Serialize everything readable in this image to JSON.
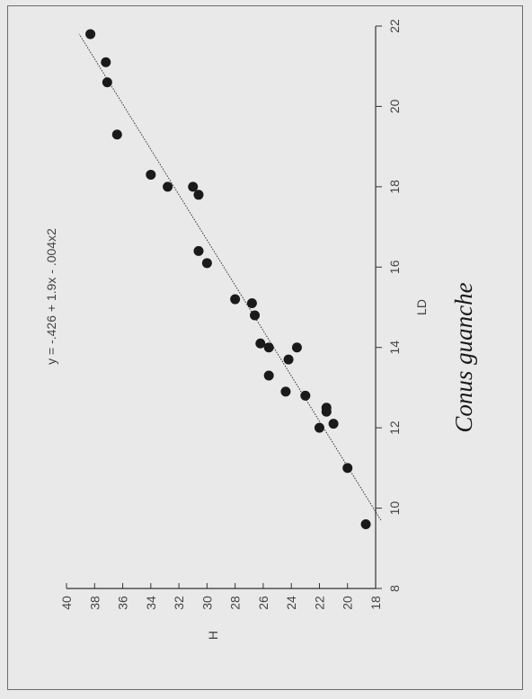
{
  "chart_data": {
    "type": "scatter",
    "orientation": "rotated-90",
    "xlabel": "LD",
    "ylabel": "H",
    "caption": "Conus guanche",
    "equation": "y = -.426 + 1.9x - .004x2",
    "xlim": [
      8,
      22
    ],
    "ylim": [
      18,
      40
    ],
    "xticks": [
      8,
      10,
      12,
      14,
      16,
      18,
      20,
      22
    ],
    "yticks": [
      18,
      20,
      22,
      24,
      26,
      28,
      30,
      32,
      34,
      36,
      38,
      40
    ],
    "grid": false,
    "points": [
      {
        "x": 9.6,
        "y": 18.7
      },
      {
        "x": 11.0,
        "y": 20.0
      },
      {
        "x": 12.0,
        "y": 22.0
      },
      {
        "x": 12.1,
        "y": 21.0
      },
      {
        "x": 12.4,
        "y": 21.5
      },
      {
        "x": 12.5,
        "y": 21.5
      },
      {
        "x": 12.8,
        "y": 23.0
      },
      {
        "x": 12.9,
        "y": 24.4
      },
      {
        "x": 13.3,
        "y": 25.6
      },
      {
        "x": 13.7,
        "y": 24.2
      },
      {
        "x": 14.0,
        "y": 23.6
      },
      {
        "x": 14.0,
        "y": 25.6
      },
      {
        "x": 14.1,
        "y": 26.2
      },
      {
        "x": 14.8,
        "y": 26.6
      },
      {
        "x": 15.1,
        "y": 26.8
      },
      {
        "x": 15.2,
        "y": 28.0
      },
      {
        "x": 16.1,
        "y": 30.0
      },
      {
        "x": 16.4,
        "y": 30.6
      },
      {
        "x": 17.8,
        "y": 30.6
      },
      {
        "x": 18.0,
        "y": 31.0
      },
      {
        "x": 18.0,
        "y": 32.8
      },
      {
        "x": 18.3,
        "y": 34.0
      },
      {
        "x": 19.3,
        "y": 36.4
      },
      {
        "x": 20.6,
        "y": 37.1
      },
      {
        "x": 21.1,
        "y": 37.2
      },
      {
        "x": 21.8,
        "y": 38.3
      }
    ],
    "fit_line": {
      "x_start": 9.7,
      "x_end": 21.8
    }
  },
  "colors": {
    "background": "#e9e9e9",
    "ink": "#1a1a1a",
    "axis": "#333333",
    "label": "#444444"
  }
}
